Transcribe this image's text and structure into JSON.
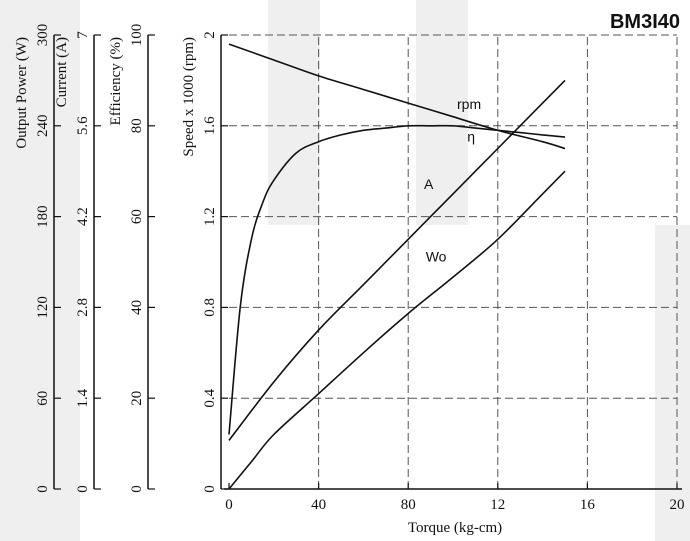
{
  "chart_data": {
    "type": "line",
    "title": "BM3I40",
    "xlabel": "Torque (kg-cm)",
    "x_ticks": [
      "0",
      "40",
      "80",
      "12",
      "16",
      "20"
    ],
    "xlim": [
      0,
      20
    ],
    "grid": true,
    "axes": [
      {
        "label": "Output Power (W)",
        "ticks": [
          "0",
          "60",
          "120",
          "180",
          "240",
          "300"
        ],
        "range": [
          0,
          300
        ]
      },
      {
        "label": "Current (A)",
        "ticks": [
          "0",
          "1.4",
          "2.8",
          "4.2",
          "5.6",
          "7"
        ],
        "range": [
          0,
          7
        ]
      },
      {
        "label": "Efficiency (%)",
        "ticks": [
          "0",
          "20",
          "40",
          "60",
          "80",
          "100"
        ],
        "range": [
          0,
          100
        ]
      },
      {
        "label": "Speed x 1000 (rpm)",
        "ticks": [
          "0",
          "0.4",
          "0.8",
          "1.2",
          "1.6",
          "2"
        ],
        "range": [
          0,
          2
        ]
      }
    ],
    "series": [
      {
        "name": "rpm",
        "axis": "Speed x 1000 (rpm)",
        "x": [
          0,
          2,
          4,
          6,
          8,
          10,
          12,
          14,
          15
        ],
        "y": [
          1.96,
          1.89,
          1.82,
          1.76,
          1.7,
          1.64,
          1.58,
          1.53,
          1.5
        ]
      },
      {
        "name": "η",
        "axis": "Efficiency (%)",
        "x": [
          0,
          0.5,
          1,
          1.5,
          2,
          3,
          4,
          5,
          6,
          7,
          8,
          9,
          10,
          11,
          12,
          13,
          14,
          15
        ],
        "y": [
          12,
          40,
          55,
          63,
          68,
          74,
          76.5,
          78,
          79,
          79.5,
          80,
          80,
          80,
          79.5,
          79,
          78.5,
          78,
          77.5
        ]
      },
      {
        "name": "A",
        "axis": "Current (A)",
        "x": [
          0,
          2,
          4,
          6,
          8,
          10,
          12,
          14,
          15
        ],
        "y": [
          0.75,
          1.65,
          2.45,
          3.15,
          3.85,
          4.55,
          5.25,
          5.95,
          6.3
        ]
      },
      {
        "name": "Wo",
        "axis": "Output Power (W)",
        "x": [
          0,
          1,
          2,
          4,
          6,
          8,
          10,
          12,
          14,
          15
        ],
        "y": [
          0,
          18,
          36,
          63,
          90,
          116,
          140,
          165,
          195,
          210
        ]
      }
    ]
  }
}
